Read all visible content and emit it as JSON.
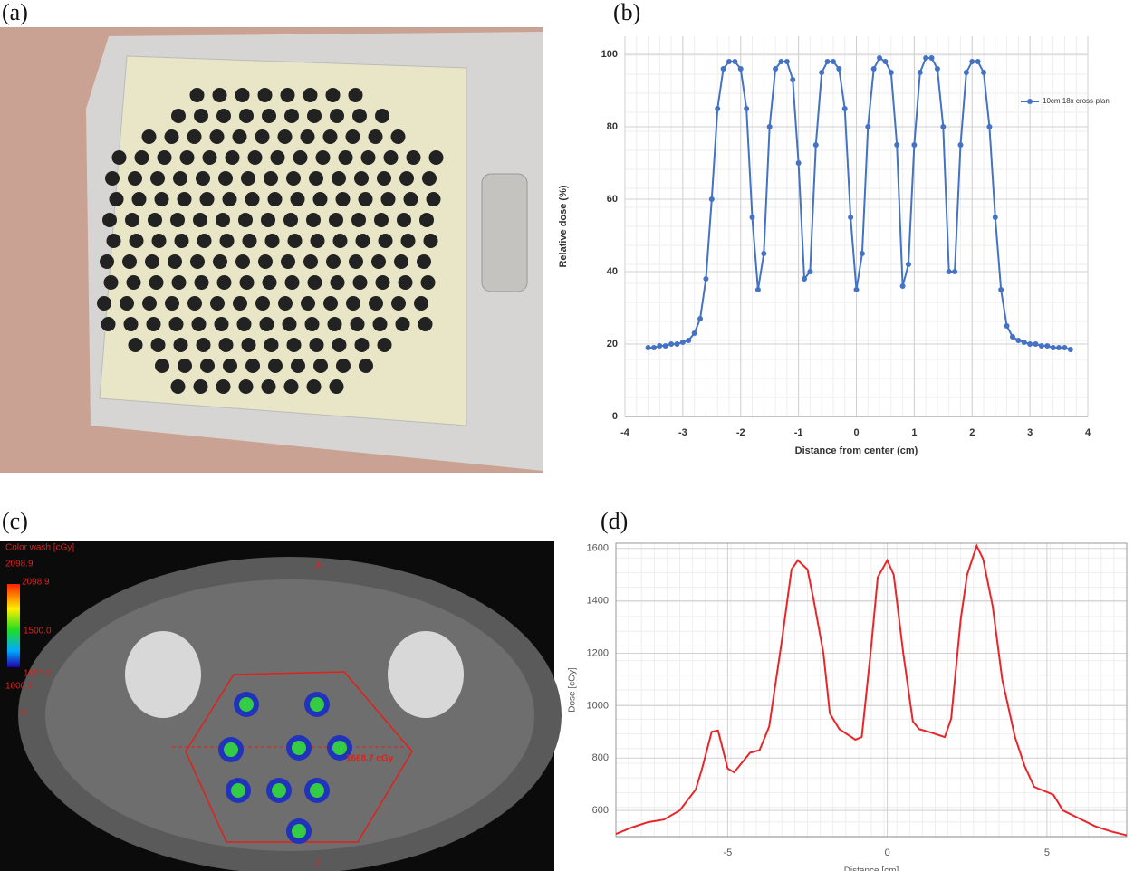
{
  "panel_labels": [
    "(a)",
    "(b)",
    "(c)",
    "(d)"
  ],
  "photo_c": {
    "color_wash": "Color wash [cGy]",
    "max_dose": "2098.9",
    "bar_top": "2098.9",
    "bar_mid": "1500.0",
    "bar_bottom": "1000.0",
    "min_dose": "1000.0",
    "anterior": "A",
    "right": "R",
    "posterior": "P",
    "point_dose": "1668.7 cGy"
  },
  "chart_data": [
    {
      "type": "line",
      "xlabel": "Distance from center (cm)",
      "ylabel": "Relative dose (%)",
      "x": [
        -3.6,
        -3.5,
        -3.4,
        -3.3,
        -3.2,
        -3.1,
        -3.0,
        -2.9,
        -2.8,
        -2.7,
        -2.6,
        -2.5,
        -2.4,
        -2.3,
        -2.2,
        -2.1,
        -2.0,
        -1.9,
        -1.8,
        -1.7,
        -1.6,
        -1.5,
        -1.4,
        -1.3,
        -1.2,
        -1.1,
        -1.0,
        -0.9,
        -0.8,
        -0.7,
        -0.6,
        -0.5,
        -0.4,
        -0.3,
        -0.2,
        -0.1,
        0.0,
        0.1,
        0.2,
        0.3,
        0.4,
        0.5,
        0.6,
        0.7,
        0.8,
        0.9,
        1.0,
        1.1,
        1.2,
        1.3,
        1.4,
        1.5,
        1.6,
        1.7,
        1.8,
        1.9,
        2.0,
        2.1,
        2.2,
        2.3,
        2.4,
        2.5,
        2.6,
        2.7,
        2.8,
        2.9,
        3.0,
        3.1,
        3.2,
        3.3,
        3.4,
        3.5,
        3.6,
        3.7
      ],
      "series": [
        {
          "name": "10cm 18x cross-plan",
          "color": "#4472c4",
          "values": [
            19,
            19,
            19.5,
            19.5,
            20,
            20,
            20.5,
            21,
            23,
            27,
            38,
            60,
            85,
            96,
            98,
            98,
            96,
            85,
            55,
            35,
            45,
            80,
            96,
            98,
            98,
            93,
            70,
            38,
            40,
            75,
            95,
            98,
            98,
            96,
            85,
            55,
            35,
            45,
            80,
            96,
            99,
            98,
            95,
            75,
            36,
            42,
            75,
            95,
            99,
            99,
            96,
            80,
            40,
            40,
            75,
            95,
            98,
            98,
            95,
            80,
            55,
            35,
            25,
            22,
            21,
            20.5,
            20,
            20,
            19.5,
            19.5,
            19,
            19,
            19,
            18.5
          ]
        }
      ],
      "xlim": [
        -4,
        4
      ],
      "xticks": [
        -4,
        -3,
        -2,
        -1,
        0,
        1,
        2,
        3,
        4
      ],
      "ylim": [
        0,
        105
      ],
      "yticks": [
        0,
        20,
        40,
        60,
        80,
        100
      ],
      "grid": true,
      "minor_grid": true,
      "markers": true,
      "legend": "right"
    },
    {
      "type": "line",
      "xlabel": "Distance [cm]",
      "ylabel": "Dose [cGy]",
      "x": [
        -8.5,
        -8,
        -7.5,
        -7,
        -6.5,
        -6,
        -5.8,
        -5.5,
        -5.3,
        -5,
        -4.8,
        -4.5,
        -4.3,
        -4,
        -3.7,
        -3.3,
        -3,
        -2.8,
        -2.5,
        -2.3,
        -2,
        -1.8,
        -1.5,
        -1,
        -0.8,
        -0.5,
        -0.3,
        0,
        0.2,
        0.5,
        0.8,
        1,
        1.3,
        1.8,
        2,
        2.3,
        2.5,
        2.8,
        3,
        3.3,
        3.6,
        4,
        4.3,
        4.6,
        4.9,
        5.2,
        5.5,
        6,
        6.5,
        7,
        7.5
      ],
      "series": [
        {
          "name": "Dose",
          "color": "#e8262a",
          "values": [
            510,
            535,
            555,
            565,
            600,
            680,
            760,
            900,
            905,
            760,
            745,
            790,
            820,
            830,
            920,
            1250,
            1520,
            1555,
            1520,
            1400,
            1200,
            970,
            910,
            870,
            880,
            1230,
            1490,
            1555,
            1500,
            1200,
            940,
            910,
            900,
            880,
            950,
            1330,
            1500,
            1610,
            1560,
            1380,
            1100,
            880,
            770,
            690,
            675,
            660,
            600,
            570,
            540,
            520,
            505
          ]
        }
      ],
      "xlim": [
        -8.5,
        7.5
      ],
      "xticks": [
        -5,
        0,
        5
      ],
      "ylim": [
        500,
        1620
      ],
      "yticks": [
        600,
        800,
        1000,
        1200,
        1400,
        1600
      ],
      "grid": true,
      "minor_grid": true,
      "markers": false
    }
  ]
}
